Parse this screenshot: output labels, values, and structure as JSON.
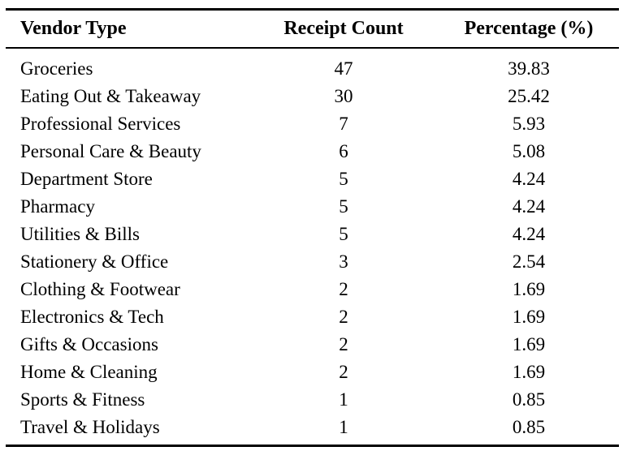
{
  "colors": {
    "background": "#ffffff",
    "text": "#000000",
    "rules": "#000000"
  },
  "chart_data": {
    "type": "table",
    "columns": [
      "Vendor Type",
      "Receipt Count",
      "Percentage (%)"
    ],
    "rows": [
      [
        "Groceries",
        47,
        "39.83"
      ],
      [
        "Eating Out & Takeaway",
        30,
        "25.42"
      ],
      [
        "Professional Services",
        7,
        "5.93"
      ],
      [
        "Personal Care & Beauty",
        6,
        "5.08"
      ],
      [
        "Department Store",
        5,
        "4.24"
      ],
      [
        "Pharmacy",
        5,
        "4.24"
      ],
      [
        "Utilities & Bills",
        5,
        "4.24"
      ],
      [
        "Stationery & Office",
        3,
        "2.54"
      ],
      [
        "Clothing & Footwear",
        2,
        "1.69"
      ],
      [
        "Electronics & Tech",
        2,
        "1.69"
      ],
      [
        "Gifts & Occasions",
        2,
        "1.69"
      ],
      [
        "Home & Cleaning",
        2,
        "1.69"
      ],
      [
        "Sports & Fitness",
        1,
        "0.85"
      ],
      [
        "Travel & Holidays",
        1,
        "0.85"
      ]
    ]
  }
}
